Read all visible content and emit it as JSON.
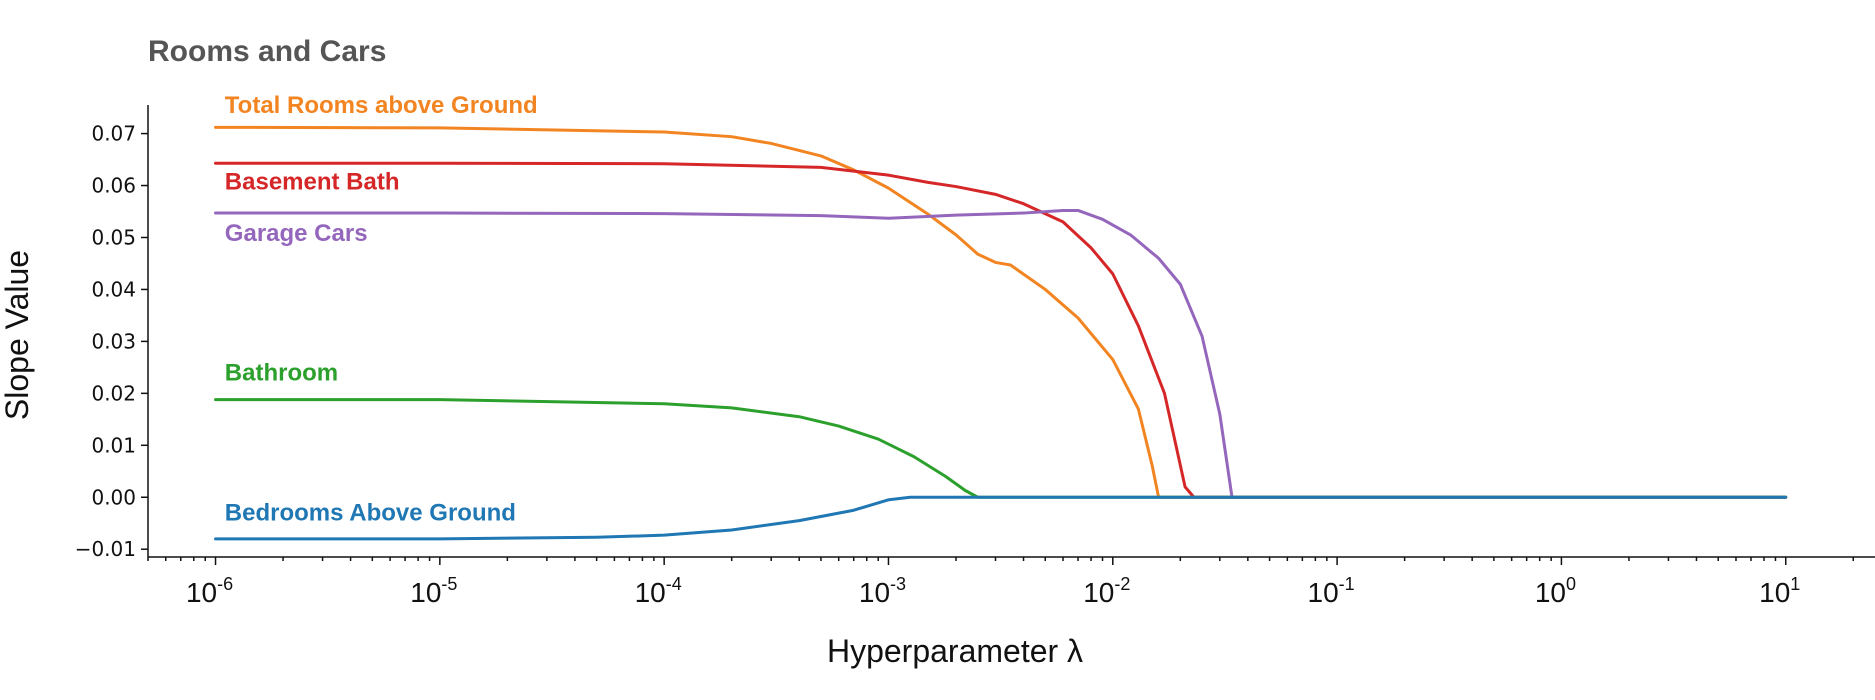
{
  "chart_data": {
    "type": "line",
    "title": "Rooms and Cars",
    "xlabel": "Hyperparameter λ",
    "ylabel": "Slope Value",
    "xscale": "log",
    "xlim": [
      5e-07,
      25
    ],
    "ylim": [
      -0.0115,
      0.0755
    ],
    "grid": false,
    "yticks": [
      -0.01,
      0.0,
      0.01,
      0.02,
      0.03,
      0.04,
      0.05,
      0.06,
      0.07
    ],
    "ytick_labels": [
      "−0.01",
      "0.00",
      "0.01",
      "0.02",
      "0.03",
      "0.04",
      "0.05",
      "0.06",
      "0.07"
    ],
    "xticks": [
      {
        "value": 1e-06,
        "base": "10",
        "exp": "-6"
      },
      {
        "value": 1e-05,
        "base": "10",
        "exp": "-5"
      },
      {
        "value": 0.0001,
        "base": "10",
        "exp": "-4"
      },
      {
        "value": 0.001,
        "base": "10",
        "exp": "-3"
      },
      {
        "value": 0.01,
        "base": "10",
        "exp": "-2"
      },
      {
        "value": 0.1,
        "base": "10",
        "exp": "-1"
      },
      {
        "value": 1,
        "base": "10",
        "exp": "0"
      },
      {
        "value": 10,
        "base": "10",
        "exp": "1"
      }
    ],
    "series": [
      {
        "name": "Total Rooms above Ground",
        "color": "#f28522",
        "label_at": [
          1.1e-06,
          0.074
        ],
        "points": [
          [
            1e-06,
            0.0712
          ],
          [
            1e-05,
            0.0711
          ],
          [
            0.0001,
            0.0703
          ],
          [
            0.0002,
            0.0694
          ],
          [
            0.0003,
            0.0681
          ],
          [
            0.0005,
            0.0657
          ],
          [
            0.0007,
            0.063
          ],
          [
            0.001,
            0.0595
          ],
          [
            0.0015,
            0.0545
          ],
          [
            0.002,
            0.0505
          ],
          [
            0.0025,
            0.0468
          ],
          [
            0.003,
            0.0452
          ],
          [
            0.0035,
            0.0447
          ],
          [
            0.005,
            0.04
          ],
          [
            0.007,
            0.0345
          ],
          [
            0.01,
            0.0265
          ],
          [
            0.013,
            0.017
          ],
          [
            0.015,
            0.006
          ],
          [
            0.016,
            0.0
          ],
          [
            10,
            0.0
          ]
        ]
      },
      {
        "name": "Basement Bath",
        "color": "#d62728",
        "label_at": [
          1.1e-06,
          0.0592
        ],
        "points": [
          [
            1e-06,
            0.0643
          ],
          [
            1e-05,
            0.0643
          ],
          [
            0.0001,
            0.0642
          ],
          [
            0.0005,
            0.0635
          ],
          [
            0.001,
            0.062
          ],
          [
            0.0015,
            0.0606
          ],
          [
            0.002,
            0.0598
          ],
          [
            0.003,
            0.0583
          ],
          [
            0.004,
            0.0565
          ],
          [
            0.006,
            0.053
          ],
          [
            0.008,
            0.048
          ],
          [
            0.01,
            0.043
          ],
          [
            0.013,
            0.033
          ],
          [
            0.017,
            0.02
          ],
          [
            0.021,
            0.002
          ],
          [
            0.023,
            0.0
          ],
          [
            10,
            0.0
          ]
        ]
      },
      {
        "name": "Garage Cars",
        "color": "#9467bd",
        "label_at": [
          1.1e-06,
          0.0493
        ],
        "points": [
          [
            1e-06,
            0.0547
          ],
          [
            1e-05,
            0.0547
          ],
          [
            0.0001,
            0.0546
          ],
          [
            0.0005,
            0.0542
          ],
          [
            0.001,
            0.0537
          ],
          [
            0.002,
            0.0543
          ],
          [
            0.004,
            0.0547
          ],
          [
            0.006,
            0.0552
          ],
          [
            0.007,
            0.0552
          ],
          [
            0.009,
            0.0535
          ],
          [
            0.012,
            0.0505
          ],
          [
            0.016,
            0.046
          ],
          [
            0.02,
            0.041
          ],
          [
            0.025,
            0.031
          ],
          [
            0.03,
            0.016
          ],
          [
            0.034,
            0.0
          ],
          [
            10,
            0.0
          ]
        ]
      },
      {
        "name": "Bathroom",
        "color": "#2ca02c",
        "label_at": [
          1.1e-06,
          0.0225
        ],
        "points": [
          [
            1e-06,
            0.0188
          ],
          [
            1e-05,
            0.0188
          ],
          [
            0.0001,
            0.018
          ],
          [
            0.0002,
            0.0172
          ],
          [
            0.0004,
            0.0155
          ],
          [
            0.0006,
            0.0137
          ],
          [
            0.0009,
            0.0112
          ],
          [
            0.0013,
            0.0078
          ],
          [
            0.0018,
            0.004
          ],
          [
            0.0022,
            0.0013
          ],
          [
            0.0025,
            0.0
          ],
          [
            10,
            0.0
          ]
        ]
      },
      {
        "name": "Bedrooms Above Ground",
        "color": "#1f77b4",
        "label_at": [
          1.1e-06,
          -0.0045
        ],
        "points": [
          [
            1e-06,
            -0.008
          ],
          [
            1e-05,
            -0.008
          ],
          [
            5e-05,
            -0.0077
          ],
          [
            0.0001,
            -0.0073
          ],
          [
            0.0002,
            -0.0063
          ],
          [
            0.0004,
            -0.0045
          ],
          [
            0.0007,
            -0.0025
          ],
          [
            0.001,
            -0.0005
          ],
          [
            0.00125,
            0.0
          ],
          [
            10,
            0.0
          ]
        ]
      }
    ]
  }
}
